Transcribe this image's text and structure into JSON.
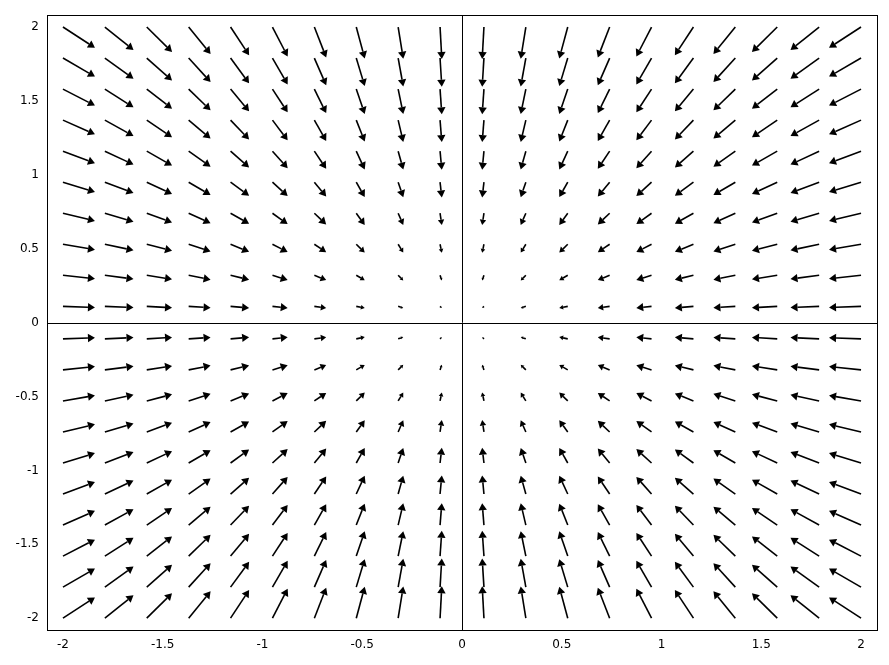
{
  "chart_data": {
    "type": "vector_field",
    "color": "#000000",
    "grid": false,
    "xlim": [
      -2.08,
      2.08
    ],
    "ylim": [
      -2.08,
      2.08
    ],
    "xticks": [
      -2,
      -1.5,
      -1,
      -0.5,
      0,
      0.5,
      1,
      1.5,
      2
    ],
    "yticks": [
      -2,
      -1.5,
      -1,
      -0.5,
      0,
      0.5,
      1,
      1.5,
      2
    ],
    "x": [
      -2,
      -1.79,
      -1.58,
      -1.37,
      -1.16,
      -0.95,
      -0.74,
      -0.53,
      -0.32,
      -0.11,
      0.11,
      0.32,
      0.53,
      0.74,
      0.95,
      1.16,
      1.37,
      1.58,
      1.79,
      2
    ],
    "y": [
      -2,
      -1.79,
      -1.58,
      -1.37,
      -1.16,
      -0.95,
      -0.74,
      -0.53,
      -0.32,
      -0.11,
      0.11,
      0.32,
      0.53,
      0.74,
      0.95,
      1.16,
      1.37,
      1.58,
      1.79,
      2
    ],
    "u": [
      [
        2,
        1.79,
        1.58,
        1.37,
        1.16,
        0.95,
        0.74,
        0.53,
        0.32,
        0.11,
        -0.11,
        -0.32,
        -0.53,
        -0.74,
        -0.95,
        -1.16,
        -1.37,
        -1.58,
        -1.79,
        -2
      ],
      [
        2,
        1.79,
        1.58,
        1.37,
        1.16,
        0.95,
        0.74,
        0.53,
        0.32,
        0.11,
        -0.11,
        -0.32,
        -0.53,
        -0.74,
        -0.95,
        -1.16,
        -1.37,
        -1.58,
        -1.79,
        -2
      ],
      [
        2,
        1.79,
        1.58,
        1.37,
        1.16,
        0.95,
        0.74,
        0.53,
        0.32,
        0.11,
        -0.11,
        -0.32,
        -0.53,
        -0.74,
        -0.95,
        -1.16,
        -1.37,
        -1.58,
        -1.79,
        -2
      ],
      [
        2,
        1.79,
        1.58,
        1.37,
        1.16,
        0.95,
        0.74,
        0.53,
        0.32,
        0.11,
        -0.11,
        -0.32,
        -0.53,
        -0.74,
        -0.95,
        -1.16,
        -1.37,
        -1.58,
        -1.79,
        -2
      ],
      [
        2,
        1.79,
        1.58,
        1.37,
        1.16,
        0.95,
        0.74,
        0.53,
        0.32,
        0.11,
        -0.11,
        -0.32,
        -0.53,
        -0.74,
        -0.95,
        -1.16,
        -1.37,
        -1.58,
        -1.79,
        -2
      ],
      [
        2,
        1.79,
        1.58,
        1.37,
        1.16,
        0.95,
        0.74,
        0.53,
        0.32,
        0.11,
        -0.11,
        -0.32,
        -0.53,
        -0.74,
        -0.95,
        -1.16,
        -1.37,
        -1.58,
        -1.79,
        -2
      ],
      [
        2,
        1.79,
        1.58,
        1.37,
        1.16,
        0.95,
        0.74,
        0.53,
        0.32,
        0.11,
        -0.11,
        -0.32,
        -0.53,
        -0.74,
        -0.95,
        -1.16,
        -1.37,
        -1.58,
        -1.79,
        -2
      ],
      [
        2,
        1.79,
        1.58,
        1.37,
        1.16,
        0.95,
        0.74,
        0.53,
        0.32,
        0.11,
        -0.11,
        -0.32,
        -0.53,
        -0.74,
        -0.95,
        -1.16,
        -1.37,
        -1.58,
        -1.79,
        -2
      ],
      [
        2,
        1.79,
        1.58,
        1.37,
        1.16,
        0.95,
        0.74,
        0.53,
        0.32,
        0.11,
        -0.11,
        -0.32,
        -0.53,
        -0.74,
        -0.95,
        -1.16,
        -1.37,
        -1.58,
        -1.79,
        -2
      ],
      [
        2,
        1.79,
        1.58,
        1.37,
        1.16,
        0.95,
        0.74,
        0.53,
        0.32,
        0.11,
        -0.11,
        -0.32,
        -0.53,
        -0.74,
        -0.95,
        -1.16,
        -1.37,
        -1.58,
        -1.79,
        -2
      ],
      [
        2,
        1.79,
        1.58,
        1.37,
        1.16,
        0.95,
        0.74,
        0.53,
        0.32,
        0.11,
        -0.11,
        -0.32,
        -0.53,
        -0.74,
        -0.95,
        -1.16,
        -1.37,
        -1.58,
        -1.79,
        -2
      ],
      [
        2,
        1.79,
        1.58,
        1.37,
        1.16,
        0.95,
        0.74,
        0.53,
        0.32,
        0.11,
        -0.11,
        -0.32,
        -0.53,
        -0.74,
        -0.95,
        -1.16,
        -1.37,
        -1.58,
        -1.79,
        -2
      ],
      [
        2,
        1.79,
        1.58,
        1.37,
        1.16,
        0.95,
        0.74,
        0.53,
        0.32,
        0.11,
        -0.11,
        -0.32,
        -0.53,
        -0.74,
        -0.95,
        -1.16,
        -1.37,
        -1.58,
        -1.79,
        -2
      ],
      [
        2,
        1.79,
        1.58,
        1.37,
        1.16,
        0.95,
        0.74,
        0.53,
        0.32,
        0.11,
        -0.11,
        -0.32,
        -0.53,
        -0.74,
        -0.95,
        -1.16,
        -1.37,
        -1.58,
        -1.79,
        -2
      ],
      [
        2,
        1.79,
        1.58,
        1.37,
        1.16,
        0.95,
        0.74,
        0.53,
        0.32,
        0.11,
        -0.11,
        -0.32,
        -0.53,
        -0.74,
        -0.95,
        -1.16,
        -1.37,
        -1.58,
        -1.79,
        -2
      ],
      [
        2,
        1.79,
        1.58,
        1.37,
        1.16,
        0.95,
        0.74,
        0.53,
        0.32,
        0.11,
        -0.11,
        -0.32,
        -0.53,
        -0.74,
        -0.95,
        -1.16,
        -1.37,
        -1.58,
        -1.79,
        -2
      ],
      [
        2,
        1.79,
        1.58,
        1.37,
        1.16,
        0.95,
        0.74,
        0.53,
        0.32,
        0.11,
        -0.11,
        -0.32,
        -0.53,
        -0.74,
        -0.95,
        -1.16,
        -1.37,
        -1.58,
        -1.79,
        -2
      ],
      [
        2,
        1.79,
        1.58,
        1.37,
        1.16,
        0.95,
        0.74,
        0.53,
        0.32,
        0.11,
        -0.11,
        -0.32,
        -0.53,
        -0.74,
        -0.95,
        -1.16,
        -1.37,
        -1.58,
        -1.79,
        -2
      ],
      [
        2,
        1.79,
        1.58,
        1.37,
        1.16,
        0.95,
        0.74,
        0.53,
        0.32,
        0.11,
        -0.11,
        -0.32,
        -0.53,
        -0.74,
        -0.95,
        -1.16,
        -1.37,
        -1.58,
        -1.79,
        -2
      ],
      [
        2,
        1.79,
        1.58,
        1.37,
        1.16,
        0.95,
        0.74,
        0.53,
        0.32,
        0.11,
        -0.11,
        -0.32,
        -0.53,
        -0.74,
        -0.95,
        -1.16,
        -1.37,
        -1.58,
        -1.79,
        -2
      ]
    ],
    "v": [
      [
        1.3,
        1.44,
        1.56,
        1.68,
        1.76,
        1.84,
        1.9,
        1.96,
        1.98,
        2,
        2,
        1.98,
        1.96,
        1.9,
        1.84,
        1.76,
        1.68,
        1.56,
        1.44,
        1.3
      ],
      [
        1.16,
        1.29,
        1.4,
        1.5,
        1.58,
        1.65,
        1.7,
        1.75,
        1.77,
        1.79,
        1.79,
        1.77,
        1.75,
        1.7,
        1.65,
        1.58,
        1.5,
        1.4,
        1.29,
        1.16
      ],
      [
        1.03,
        1.14,
        1.23,
        1.33,
        1.39,
        1.45,
        1.5,
        1.55,
        1.56,
        1.58,
        1.58,
        1.56,
        1.55,
        1.5,
        1.45,
        1.39,
        1.33,
        1.23,
        1.14,
        1.03
      ],
      [
        0.89,
        0.99,
        1.07,
        1.15,
        1.21,
        1.26,
        1.3,
        1.34,
        1.36,
        1.37,
        1.37,
        1.36,
        1.34,
        1.3,
        1.26,
        1.21,
        1.15,
        1.07,
        0.99,
        0.89
      ],
      [
        0.75,
        0.84,
        0.9,
        0.97,
        1.02,
        1.07,
        1.1,
        1.14,
        1.15,
        1.16,
        1.16,
        1.15,
        1.14,
        1.1,
        1.07,
        1.02,
        0.97,
        0.9,
        0.84,
        0.75
      ],
      [
        0.62,
        0.68,
        0.74,
        0.8,
        0.84,
        0.87,
        0.9,
        0.93,
        0.94,
        0.95,
        0.95,
        0.94,
        0.93,
        0.9,
        0.87,
        0.84,
        0.8,
        0.74,
        0.68,
        0.62
      ],
      [
        0.48,
        0.53,
        0.58,
        0.62,
        0.65,
        0.68,
        0.7,
        0.73,
        0.73,
        0.74,
        0.74,
        0.73,
        0.73,
        0.7,
        0.68,
        0.65,
        0.62,
        0.58,
        0.53,
        0.48
      ],
      [
        0.34,
        0.38,
        0.41,
        0.45,
        0.47,
        0.49,
        0.5,
        0.52,
        0.52,
        0.53,
        0.53,
        0.52,
        0.52,
        0.5,
        0.49,
        0.47,
        0.45,
        0.41,
        0.38,
        0.34
      ],
      [
        0.21,
        0.23,
        0.25,
        0.27,
        0.28,
        0.29,
        0.3,
        0.31,
        0.32,
        0.32,
        0.32,
        0.32,
        0.31,
        0.3,
        0.29,
        0.28,
        0.27,
        0.25,
        0.23,
        0.21
      ],
      [
        0.07,
        0.08,
        0.09,
        0.09,
        0.1,
        0.1,
        0.1,
        0.11,
        0.11,
        0.11,
        0.11,
        0.11,
        0.11,
        0.1,
        0.1,
        0.1,
        0.09,
        0.09,
        0.08,
        0.07
      ],
      [
        -0.07,
        -0.08,
        -0.09,
        -0.09,
        -0.1,
        -0.1,
        -0.1,
        -0.11,
        -0.11,
        -0.11,
        -0.11,
        -0.11,
        -0.11,
        -0.1,
        -0.1,
        -0.1,
        -0.09,
        -0.09,
        -0.08,
        -0.07
      ],
      [
        -0.21,
        -0.23,
        -0.25,
        -0.27,
        -0.28,
        -0.29,
        -0.3,
        -0.31,
        -0.32,
        -0.32,
        -0.32,
        -0.32,
        -0.31,
        -0.3,
        -0.29,
        -0.28,
        -0.27,
        -0.25,
        -0.23,
        -0.21
      ],
      [
        -0.34,
        -0.38,
        -0.41,
        -0.45,
        -0.47,
        -0.49,
        -0.5,
        -0.52,
        -0.52,
        -0.53,
        -0.53,
        -0.52,
        -0.52,
        -0.5,
        -0.49,
        -0.47,
        -0.45,
        -0.41,
        -0.38,
        -0.34
      ],
      [
        -0.48,
        -0.53,
        -0.58,
        -0.62,
        -0.65,
        -0.68,
        -0.7,
        -0.73,
        -0.73,
        -0.74,
        -0.74,
        -0.73,
        -0.73,
        -0.7,
        -0.68,
        -0.65,
        -0.62,
        -0.58,
        -0.53,
        -0.48
      ],
      [
        -0.62,
        -0.68,
        -0.74,
        -0.8,
        -0.84,
        -0.87,
        -0.9,
        -0.93,
        -0.94,
        -0.95,
        -0.95,
        -0.94,
        -0.93,
        -0.9,
        -0.87,
        -0.84,
        -0.8,
        -0.74,
        -0.68,
        -0.62
      ],
      [
        -0.75,
        -0.84,
        -0.9,
        -0.97,
        -1.02,
        -1.07,
        -1.1,
        -1.14,
        -1.15,
        -1.16,
        -1.16,
        -1.15,
        -1.14,
        -1.1,
        -1.07,
        -1.02,
        -0.97,
        -0.9,
        -0.84,
        -0.75
      ],
      [
        -0.89,
        -0.99,
        -1.07,
        -1.15,
        -1.21,
        -1.26,
        -1.3,
        -1.34,
        -1.36,
        -1.37,
        -1.37,
        -1.36,
        -1.34,
        -1.3,
        -1.26,
        -1.21,
        -1.15,
        -1.07,
        -0.99,
        -0.89
      ],
      [
        -1.03,
        -1.14,
        -1.23,
        -1.33,
        -1.39,
        -1.45,
        -1.5,
        -1.55,
        -1.56,
        -1.58,
        -1.58,
        -1.56,
        -1.55,
        -1.5,
        -1.45,
        -1.39,
        -1.33,
        -1.23,
        -1.14,
        -1.03
      ],
      [
        -1.16,
        -1.29,
        -1.4,
        -1.5,
        -1.58,
        -1.65,
        -1.7,
        -1.75,
        -1.77,
        -1.79,
        -1.79,
        -1.77,
        -1.75,
        -1.7,
        -1.65,
        -1.58,
        -1.5,
        -1.4,
        -1.29,
        -1.16
      ],
      [
        -1.3,
        -1.44,
        -1.56,
        -1.68,
        -1.76,
        -1.84,
        -1.9,
        -1.96,
        -1.98,
        -2,
        -2,
        -1.98,
        -1.96,
        -1.9,
        -1.84,
        -1.76,
        -1.68,
        -1.56,
        -1.44,
        -1.3
      ]
    ]
  }
}
